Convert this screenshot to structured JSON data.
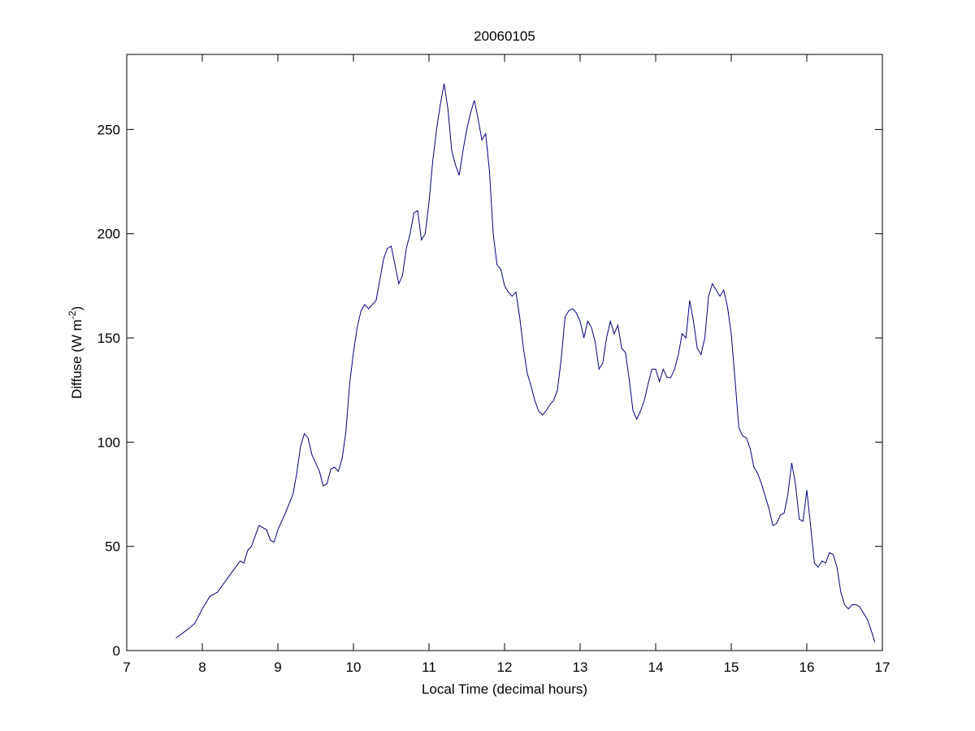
{
  "chart_data": {
    "type": "line",
    "title": "20060105",
    "xlabel": "Local Time (decimal hours)",
    "ylabel": {
      "text": "Diffuse (W m",
      "superscript": "-2",
      "suffix": ")"
    },
    "xlim": [
      7,
      17
    ],
    "xticks": [
      7,
      8,
      9,
      10,
      11,
      12,
      13,
      14,
      15,
      16,
      17
    ],
    "ylim": [
      0,
      286
    ],
    "yticks": [
      0,
      50,
      100,
      150,
      200,
      250
    ],
    "grid": false,
    "series": [
      {
        "name": "Diffuse",
        "color": "#00007f",
        "x": [
          7.65,
          7.8,
          7.9,
          8.0,
          8.1,
          8.2,
          8.3,
          8.4,
          8.5,
          8.55,
          8.6,
          8.65,
          8.7,
          8.75,
          8.85,
          8.9,
          8.95,
          9.0,
          9.05,
          9.1,
          9.2,
          9.25,
          9.3,
          9.35,
          9.4,
          9.45,
          9.5,
          9.55,
          9.6,
          9.65,
          9.7,
          9.75,
          9.8,
          9.85,
          9.9,
          9.95,
          10.0,
          10.05,
          10.1,
          10.15,
          10.2,
          10.25,
          10.3,
          10.35,
          10.4,
          10.45,
          10.5,
          10.55,
          10.6,
          10.65,
          10.7,
          10.75,
          10.8,
          10.85,
          10.9,
          10.95,
          11.0,
          11.05,
          11.1,
          11.15,
          11.2,
          11.25,
          11.3,
          11.35,
          11.4,
          11.45,
          11.5,
          11.55,
          11.6,
          11.65,
          11.7,
          11.75,
          11.8,
          11.85,
          11.9,
          11.95,
          12.0,
          12.05,
          12.1,
          12.15,
          12.2,
          12.25,
          12.3,
          12.35,
          12.4,
          12.45,
          12.5,
          12.55,
          12.6,
          12.65,
          12.7,
          12.75,
          12.8,
          12.85,
          12.9,
          12.95,
          13.0,
          13.05,
          13.1,
          13.15,
          13.2,
          13.25,
          13.3,
          13.35,
          13.4,
          13.45,
          13.5,
          13.55,
          13.6,
          13.65,
          13.7,
          13.75,
          13.8,
          13.85,
          13.9,
          13.95,
          14.0,
          14.05,
          14.1,
          14.15,
          14.2,
          14.25,
          14.3,
          14.35,
          14.4,
          14.45,
          14.5,
          14.55,
          14.6,
          14.65,
          14.7,
          14.75,
          14.8,
          14.85,
          14.9,
          14.95,
          15.0,
          15.05,
          15.1,
          15.15,
          15.2,
          15.25,
          15.3,
          15.35,
          15.4,
          15.45,
          15.5,
          15.55,
          15.6,
          15.65,
          15.7,
          15.75,
          15.8,
          15.85,
          15.9,
          15.95,
          16.0,
          16.05,
          16.1,
          16.15,
          16.2,
          16.25,
          16.3,
          16.35,
          16.4,
          16.45,
          16.5,
          16.55,
          16.6,
          16.65,
          16.7,
          16.75,
          16.8,
          16.85,
          16.9
        ],
        "values": [
          6,
          10,
          13,
          20,
          26,
          28,
          33,
          38,
          43,
          42,
          48,
          50,
          55,
          60,
          58,
          53,
          52,
          58,
          62,
          66,
          75,
          85,
          98,
          104,
          102,
          94,
          90,
          86,
          79,
          80,
          87,
          88,
          86,
          92,
          105,
          128,
          143,
          155,
          163,
          166,
          164,
          166,
          168,
          178,
          188,
          193,
          194,
          185,
          176,
          180,
          193,
          200,
          210,
          211,
          197,
          200,
          215,
          235,
          250,
          262,
          272,
          260,
          240,
          233,
          228,
          240,
          250,
          258,
          264,
          255,
          245,
          248,
          230,
          200,
          185,
          183,
          175,
          172,
          170,
          172,
          160,
          145,
          133,
          127,
          120,
          115,
          113,
          115,
          118,
          120,
          125,
          140,
          160,
          163,
          164,
          162,
          158,
          150,
          158,
          155,
          148,
          135,
          138,
          150,
          158,
          152,
          156,
          145,
          143,
          130,
          115,
          111,
          115,
          120,
          128,
          135,
          135,
          129,
          135,
          131,
          131,
          135,
          142,
          152,
          150,
          168,
          158,
          145,
          142,
          150,
          170,
          176,
          173,
          170,
          173,
          165,
          152,
          130,
          107,
          103,
          102,
          97,
          88,
          85,
          80,
          74,
          68,
          60,
          61,
          65,
          66,
          75,
          90,
          80,
          63,
          62,
          77,
          60,
          42,
          40,
          43,
          42,
          47,
          46,
          40,
          28,
          22,
          20,
          22,
          22,
          21,
          18,
          15,
          10,
          4
        ]
      }
    ]
  }
}
